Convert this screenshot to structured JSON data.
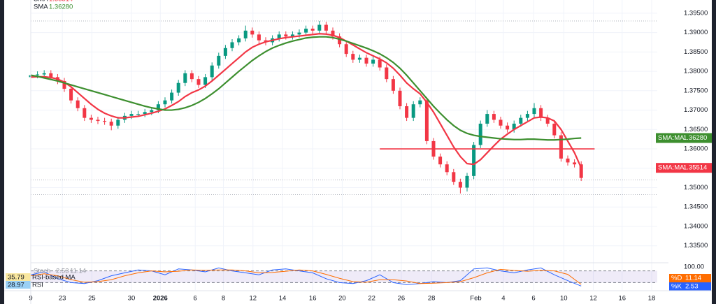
{
  "chart_data": {
    "type": "candlestick",
    "xlim": [
      0,
      95
    ],
    "xticks": [
      {
        "value": 0,
        "label": "9"
      },
      {
        "value": 4.7,
        "label": "23"
      },
      {
        "value": 9.1,
        "label": "25"
      },
      {
        "value": 15,
        "label": "30"
      },
      {
        "value": 19.3,
        "label": "2026"
      },
      {
        "value": 24.5,
        "label": "6"
      },
      {
        "value": 28.7,
        "label": "8"
      },
      {
        "value": 33.1,
        "label": "12"
      },
      {
        "value": 37.5,
        "label": "14"
      },
      {
        "value": 42,
        "label": "16"
      },
      {
        "value": 46.4,
        "label": "20"
      },
      {
        "value": 50.8,
        "label": "22"
      },
      {
        "value": 55.2,
        "label": "26"
      },
      {
        "value": 59.7,
        "label": "28"
      },
      {
        "value": 66.3,
        "label": "Feb"
      },
      {
        "value": 70.4,
        "label": "4"
      },
      {
        "value": 74.9,
        "label": "6"
      },
      {
        "value": 79.4,
        "label": "10"
      },
      {
        "value": 83.8,
        "label": "12"
      },
      {
        "value": 88.1,
        "label": "16"
      },
      {
        "value": 92.5,
        "label": "18"
      }
    ],
    "ylim": [
      1.3317,
      1.3984
    ],
    "yticks": [
      {
        "value": 1.395,
        "label": "1.39500"
      },
      {
        "value": 1.39,
        "label": "1.39000"
      },
      {
        "value": 1.385,
        "label": "1.38500"
      },
      {
        "value": 1.38,
        "label": "1.38000"
      },
      {
        "value": 1.375,
        "label": "1.37500"
      },
      {
        "value": 1.37,
        "label": "1.37000"
      },
      {
        "value": 1.365,
        "label": "1.36500"
      },
      {
        "value": 1.36,
        "label": "1.36000"
      },
      {
        "value": 1.355,
        "label": "1.35500"
      },
      {
        "value": 1.35,
        "label": "1.35000"
      },
      {
        "value": 1.345,
        "label": "1.34500"
      },
      {
        "value": 1.34,
        "label": "1.34000"
      },
      {
        "value": 1.335,
        "label": "1.33500"
      }
    ],
    "up_color": "#089981",
    "down_color": "#f23645",
    "open": [
      1.3785,
      1.379,
      1.3792,
      1.3795,
      1.3785,
      1.3775,
      1.3755,
      1.3725,
      1.3705,
      1.368,
      1.3675,
      1.3672,
      1.367,
      1.366,
      1.3675,
      1.3685,
      1.369,
      1.369,
      1.3695,
      1.37,
      1.3715,
      1.3725,
      1.3745,
      1.377,
      1.3795,
      1.378,
      1.3765,
      1.3785,
      1.3815,
      1.384,
      1.386,
      1.3875,
      1.3885,
      1.3905,
      1.3895,
      1.388,
      1.3875,
      1.3885,
      1.3895,
      1.389,
      1.3895,
      1.39,
      1.391,
      1.3905,
      1.392,
      1.3905,
      1.389,
      1.387,
      1.3845,
      1.383,
      1.3835,
      1.382,
      1.383,
      1.381,
      1.378,
      1.375,
      1.371,
      1.368,
      1.3715,
      1.3725,
      1.362,
      1.358,
      1.356,
      1.354,
      1.3515,
      1.35,
      1.353,
      1.361,
      1.3665,
      1.369,
      1.3675,
      1.366,
      1.365,
      1.3665,
      1.368,
      1.369,
      1.3705,
      1.368,
      1.3665,
      1.3635,
      1.3575,
      1.3565,
      1.356
    ],
    "high": [
      1.3798,
      1.38,
      1.3803,
      1.3803,
      1.3793,
      1.3783,
      1.3763,
      1.3733,
      1.3713,
      1.3688,
      1.3683,
      1.368,
      1.3678,
      1.3683,
      1.3693,
      1.3698,
      1.3698,
      1.3703,
      1.3708,
      1.3723,
      1.3733,
      1.3753,
      1.3778,
      1.3803,
      1.3803,
      1.3788,
      1.3793,
      1.3823,
      1.3848,
      1.3868,
      1.3883,
      1.3893,
      1.3918,
      1.3913,
      1.3903,
      1.3888,
      1.3893,
      1.3903,
      1.3903,
      1.3903,
      1.3908,
      1.3918,
      1.3918,
      1.393,
      1.3928,
      1.3913,
      1.3898,
      1.3878,
      1.3853,
      1.3843,
      1.3843,
      1.3838,
      1.3838,
      1.3818,
      1.3788,
      1.3758,
      1.3718,
      1.3723,
      1.3733,
      1.3733,
      1.3628,
      1.3588,
      1.3568,
      1.3548,
      1.3523,
      1.3538,
      1.3618,
      1.3673,
      1.37,
      1.3698,
      1.3683,
      1.3668,
      1.3673,
      1.3688,
      1.3698,
      1.3718,
      1.3713,
      1.3688,
      1.3673,
      1.3643,
      1.3583,
      1.3573,
      1.3568
    ],
    "low": [
      1.3777,
      1.3782,
      1.3784,
      1.3777,
      1.3767,
      1.3747,
      1.3717,
      1.3697,
      1.3672,
      1.3667,
      1.3664,
      1.3662,
      1.3648,
      1.3652,
      1.3667,
      1.3677,
      1.3682,
      1.3682,
      1.3687,
      1.3692,
      1.3707,
      1.3717,
      1.3737,
      1.3762,
      1.3772,
      1.3757,
      1.3757,
      1.3777,
      1.3807,
      1.3832,
      1.3852,
      1.3867,
      1.3877,
      1.3887,
      1.3872,
      1.3867,
      1.3867,
      1.3877,
      1.3882,
      1.3882,
      1.3887,
      1.3892,
      1.3897,
      1.3897,
      1.3897,
      1.3882,
      1.3862,
      1.3837,
      1.3822,
      1.3822,
      1.3812,
      1.3812,
      1.3802,
      1.3772,
      1.3742,
      1.3702,
      1.3672,
      1.3672,
      1.3707,
      1.3612,
      1.3572,
      1.3552,
      1.3532,
      1.3507,
      1.3485,
      1.349,
      1.3522,
      1.3602,
      1.3657,
      1.3667,
      1.3652,
      1.3642,
      1.3642,
      1.3657,
      1.3672,
      1.3682,
      1.3672,
      1.3657,
      1.3627,
      1.3567,
      1.3557,
      1.3552,
      1.3517
    ],
    "close": [
      1.379,
      1.3792,
      1.3795,
      1.3785,
      1.3775,
      1.3755,
      1.3725,
      1.3705,
      1.368,
      1.3675,
      1.3672,
      1.367,
      1.366,
      1.3675,
      1.3685,
      1.369,
      1.369,
      1.3695,
      1.37,
      1.3715,
      1.3725,
      1.3745,
      1.377,
      1.3795,
      1.378,
      1.3765,
      1.3785,
      1.3815,
      1.384,
      1.386,
      1.3875,
      1.3885,
      1.3905,
      1.3895,
      1.388,
      1.3875,
      1.3885,
      1.3895,
      1.389,
      1.3895,
      1.39,
      1.391,
      1.3905,
      1.392,
      1.3905,
      1.389,
      1.387,
      1.3845,
      1.383,
      1.3835,
      1.382,
      1.383,
      1.381,
      1.378,
      1.375,
      1.371,
      1.368,
      1.3715,
      1.3725,
      1.362,
      1.358,
      1.356,
      1.354,
      1.3515,
      1.35,
      1.353,
      1.361,
      1.3665,
      1.369,
      1.3675,
      1.366,
      1.365,
      1.3665,
      1.368,
      1.369,
      1.3705,
      1.368,
      1.3665,
      1.3635,
      1.3575,
      1.3565,
      1.356,
      1.3525
    ],
    "tag": "SMA:MA",
    "series": [
      {
        "name": "SMA",
        "color": "#f23645",
        "last_label": "1.35514",
        "values": [
          1.3785,
          1.3786,
          1.3786,
          1.3784,
          1.378,
          1.3772,
          1.376,
          1.3745,
          1.373,
          1.3715,
          1.3702,
          1.3692,
          1.3685,
          1.368,
          1.368,
          1.3682,
          1.3684,
          1.3688,
          1.3692,
          1.3697,
          1.3703,
          1.3712,
          1.3722,
          1.3735,
          1.3745,
          1.3752,
          1.3762,
          1.3775,
          1.379,
          1.3805,
          1.382,
          1.3835,
          1.385,
          1.3862,
          1.387,
          1.3876,
          1.388,
          1.3884,
          1.3887,
          1.3889,
          1.3891,
          1.3893,
          1.3895,
          1.3897,
          1.3896,
          1.3893,
          1.3887,
          1.3878,
          1.3868,
          1.3858,
          1.3848,
          1.384,
          1.3832,
          1.3822,
          1.3808,
          1.379,
          1.377,
          1.3755,
          1.3742,
          1.372,
          1.3695,
          1.3665,
          1.3635,
          1.3605,
          1.358,
          1.3562,
          1.356,
          1.3572,
          1.359,
          1.3608,
          1.3625,
          1.3638,
          1.365,
          1.366,
          1.367,
          1.368,
          1.3682,
          1.368,
          1.3672,
          1.365,
          1.362,
          1.359,
          1.3551
        ]
      },
      {
        "name": "SMA",
        "color": "#3d8f2f",
        "last_label": "1.36280",
        "values": [
          1.379,
          1.3787,
          1.3783,
          1.3779,
          1.3775,
          1.377,
          1.3765,
          1.376,
          1.3755,
          1.375,
          1.3745,
          1.374,
          1.3735,
          1.373,
          1.3725,
          1.372,
          1.3715,
          1.371,
          1.3706,
          1.3703,
          1.37,
          1.37,
          1.3702,
          1.3706,
          1.3712,
          1.372,
          1.373,
          1.3742,
          1.3755,
          1.377,
          1.3785,
          1.38,
          1.3814,
          1.3828,
          1.384,
          1.3851,
          1.386,
          1.3867,
          1.3873,
          1.3878,
          1.3882,
          1.3886,
          1.3888,
          1.3889,
          1.3889,
          1.3887,
          1.3883,
          1.3878,
          1.3872,
          1.3866,
          1.386,
          1.3853,
          1.3845,
          1.3835,
          1.3823,
          1.3808,
          1.379,
          1.377,
          1.375,
          1.373,
          1.371,
          1.3692,
          1.3675,
          1.366,
          1.3648,
          1.364,
          1.3635,
          1.3632,
          1.363,
          1.3628,
          1.3626,
          1.3625,
          1.3624,
          1.3624,
          1.3625,
          1.3625,
          1.3624,
          1.3623,
          1.3623,
          1.3624,
          1.3625,
          1.3627,
          1.3628
        ]
      }
    ],
    "hlines": [
      {
        "value": 1.36,
        "from": 52,
        "to": 84,
        "color": "#f23645"
      }
    ],
    "dotted_lines": [
      1.393,
      1.352,
      1.3482
    ],
    "oscillator": {
      "name": "Stoch",
      "ylim": [
        0,
        100
      ],
      "yticks": [
        {
          "value": 100,
          "label": "100.00"
        }
      ],
      "band": [
        20,
        80
      ],
      "x_step": 2,
      "series": [
        {
          "name": "%K",
          "color": "#2962ff",
          "last_label": "2.53",
          "values": [
            60,
            75,
            40,
            20,
            15,
            30,
            55,
            70,
            85,
            80,
            60,
            90,
            85,
            75,
            95,
            80,
            70,
            60,
            85,
            90,
            80,
            70,
            40,
            20,
            15,
            30,
            60,
            20,
            10,
            15,
            25,
            20,
            30,
            90,
            95,
            80,
            70,
            85,
            95,
            60,
            30,
            2.53
          ]
        },
        {
          "name": "%D",
          "color": "#ff6d00",
          "last_label": "11.14",
          "values": [
            55,
            65,
            55,
            35,
            22,
            25,
            35,
            55,
            70,
            80,
            75,
            78,
            85,
            83,
            85,
            85,
            80,
            70,
            72,
            78,
            85,
            80,
            62,
            42,
            25,
            22,
            35,
            35,
            28,
            15,
            17,
            20,
            25,
            45,
            70,
            88,
            82,
            78,
            83,
            80,
            62,
            11.14
          ]
        }
      ],
      "rsi": {
        "name": "RSI",
        "value_label": "28.97",
        "ma_name": "RSI-based MA",
        "ma_label": "35.79"
      }
    }
  }
}
